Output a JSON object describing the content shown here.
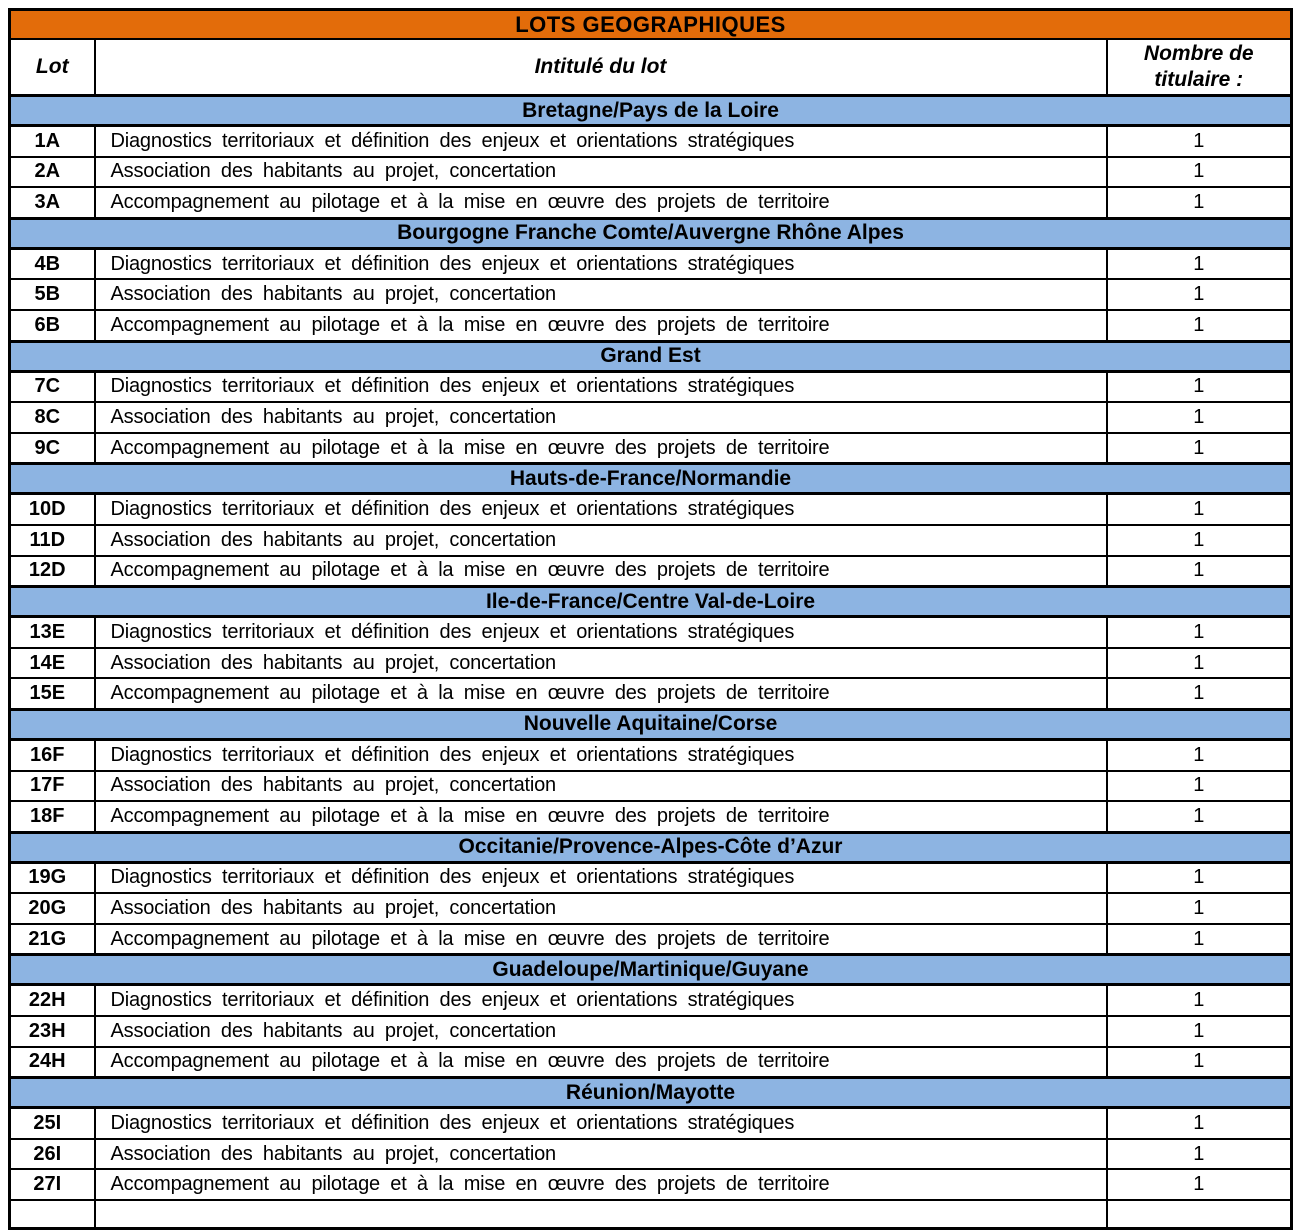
{
  "table": {
    "title": "LOTS GEOGRAPHIQUES",
    "columns": {
      "lot": "Lot",
      "intitule": "Intitulé du lot",
      "titulaires": "Nombre de titulaire :"
    },
    "sections": [
      {
        "region": "Bretagne/Pays de la Loire",
        "rows": [
          {
            "lot": "1A",
            "label": "Diagnostics territoriaux et définition des enjeux et orientations stratégiques",
            "count": "1"
          },
          {
            "lot": "2A",
            "label": "Association des habitants au projet, concertation",
            "count": "1"
          },
          {
            "lot": "3A",
            "label": "Accompagnement au pilotage et à la mise en œuvre des projets de territoire",
            "count": "1"
          }
        ]
      },
      {
        "region": "Bourgogne Franche Comte/Auvergne Rhône Alpes",
        "rows": [
          {
            "lot": "4B",
            "label": "Diagnostics territoriaux et définition des enjeux et orientations stratégiques",
            "count": "1"
          },
          {
            "lot": "5B",
            "label": "Association des habitants au projet, concertation",
            "count": "1"
          },
          {
            "lot": "6B",
            "label": "Accompagnement au pilotage et à la mise en œuvre des projets de territoire",
            "count": "1"
          }
        ]
      },
      {
        "region": "Grand Est",
        "rows": [
          {
            "lot": "7C",
            "label": "Diagnostics territoriaux et définition des enjeux et orientations stratégiques",
            "count": "1"
          },
          {
            "lot": "8C",
            "label": "Association des habitants au projet, concertation",
            "count": "1"
          },
          {
            "lot": "9C",
            "label": "Accompagnement au pilotage et à la mise en œuvre des projets de territoire",
            "count": "1"
          }
        ]
      },
      {
        "region": "Hauts-de-France/Normandie",
        "rows": [
          {
            "lot": "10D",
            "label": "Diagnostics territoriaux et définition des enjeux et orientations stratégiques",
            "count": "1"
          },
          {
            "lot": "11D",
            "label": "Association des habitants au projet, concertation",
            "count": "1"
          },
          {
            "lot": "12D",
            "label": "Accompagnement au pilotage et à la mise en œuvre des projets de territoire",
            "count": "1"
          }
        ]
      },
      {
        "region": "Ile-de-France/Centre Val-de-Loire",
        "rows": [
          {
            "lot": "13E",
            "label": "Diagnostics territoriaux et définition des enjeux et orientations stratégiques",
            "count": "1"
          },
          {
            "lot": "14E",
            "label": "Association des habitants au projet, concertation",
            "count": "1"
          },
          {
            "lot": "15E",
            "label": "Accompagnement au pilotage et à la mise en œuvre des projets de territoire",
            "count": "1"
          }
        ]
      },
      {
        "region": "Nouvelle Aquitaine/Corse",
        "rows": [
          {
            "lot": "16F",
            "label": "Diagnostics territoriaux et définition des enjeux et orientations stratégiques",
            "count": "1"
          },
          {
            "lot": "17F",
            "label": "Association des habitants au projet, concertation",
            "count": "1"
          },
          {
            "lot": "18F",
            "label": "Accompagnement au pilotage et à la mise en œuvre des projets de territoire",
            "count": "1"
          }
        ]
      },
      {
        "region": "Occitanie/Provence-Alpes-Côte d’Azur",
        "rows": [
          {
            "lot": "19G",
            "label": "Diagnostics territoriaux et définition des enjeux et orientations stratégiques",
            "count": "1"
          },
          {
            "lot": "20G",
            "label": "Association des habitants au projet, concertation",
            "count": "1"
          },
          {
            "lot": "21G",
            "label": "Accompagnement au pilotage et à la mise en œuvre des projets de territoire",
            "count": "1"
          }
        ]
      },
      {
        "region": "Guadeloupe/Martinique/Guyane",
        "rows": [
          {
            "lot": "22H",
            "label": "Diagnostics territoriaux et définition des enjeux et orientations stratégiques",
            "count": "1"
          },
          {
            "lot": "23H",
            "label": "Association des habitants au projet, concertation",
            "count": "1"
          },
          {
            "lot": "24H",
            "label": "Accompagnement au pilotage et à la mise en œuvre des projets de territoire",
            "count": "1"
          }
        ]
      },
      {
        "region": "Réunion/Mayotte",
        "rows": [
          {
            "lot": "25I",
            "label": "Diagnostics territoriaux et définition des enjeux et orientations stratégiques",
            "count": "1"
          },
          {
            "lot": "26I",
            "label": "Association des habitants au projet, concertation",
            "count": "1"
          },
          {
            "lot": "27I",
            "label": "Accompagnement au pilotage et à la mise en œuvre des projets de territoire",
            "count": "1"
          }
        ]
      }
    ]
  },
  "colors": {
    "header_bg": "#E36C0A",
    "section_bg": "#8DB4E2",
    "border": "#000000",
    "text": "#000000"
  }
}
